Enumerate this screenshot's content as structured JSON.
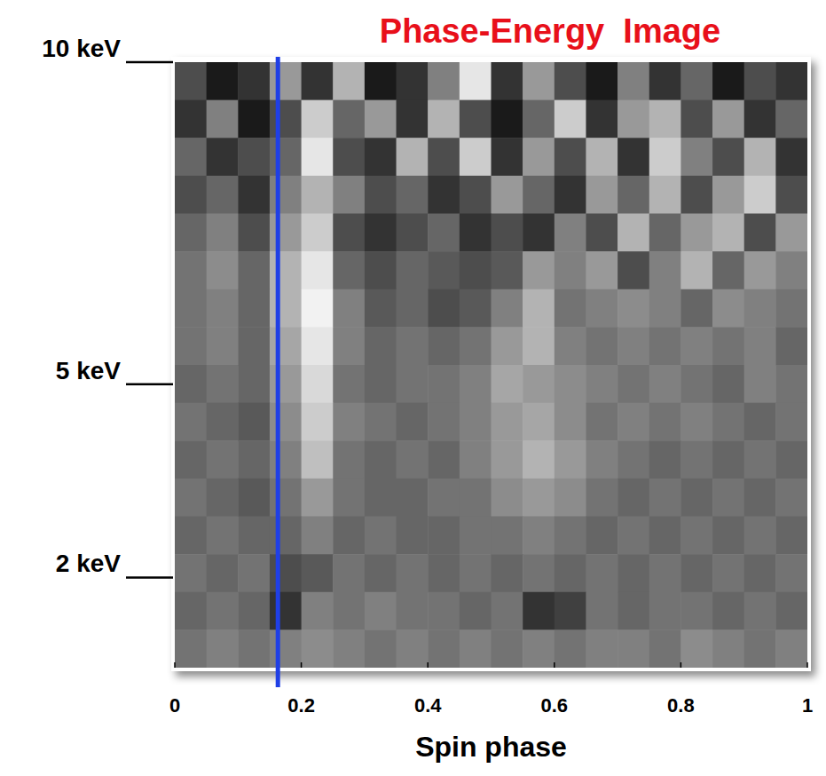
{
  "chart_data": {
    "type": "heatmap",
    "title": "Phase-Energy  Image",
    "x_label": "Spin phase",
    "xlim": [
      0,
      1
    ],
    "xticks": [
      0,
      0.2,
      0.4,
      0.6,
      0.8,
      1
    ],
    "ylim": [
      0.6,
      10
    ],
    "yticks": [
      {
        "value": 10,
        "label": "10 keV"
      },
      {
        "value": 5,
        "label": "5 keV"
      },
      {
        "value": 2,
        "label": "2 keV"
      }
    ],
    "zlim": [
      0,
      1
    ],
    "vline": {
      "x": 0.163,
      "color": "#1f3fe6"
    },
    "cells": [
      [
        0.3,
        0.1,
        0.2,
        0.6,
        0.2,
        0.7,
        0.1,
        0.2,
        0.5,
        0.9,
        0.2,
        0.6,
        0.3,
        0.1,
        0.5,
        0.2,
        0.4,
        0.1,
        0.3,
        0.2
      ],
      [
        0.2,
        0.5,
        0.1,
        0.3,
        0.8,
        0.4,
        0.6,
        0.2,
        0.7,
        0.3,
        0.1,
        0.4,
        0.8,
        0.2,
        0.6,
        0.7,
        0.3,
        0.6,
        0.2,
        0.4
      ],
      [
        0.4,
        0.2,
        0.3,
        0.4,
        0.9,
        0.3,
        0.2,
        0.7,
        0.3,
        0.8,
        0.2,
        0.6,
        0.3,
        0.7,
        0.2,
        0.8,
        0.5,
        0.3,
        0.7,
        0.2
      ],
      [
        0.3,
        0.4,
        0.2,
        0.5,
        0.7,
        0.5,
        0.3,
        0.4,
        0.2,
        0.3,
        0.6,
        0.4,
        0.2,
        0.6,
        0.4,
        0.7,
        0.3,
        0.6,
        0.8,
        0.3
      ],
      [
        0.4,
        0.5,
        0.3,
        0.6,
        0.8,
        0.3,
        0.2,
        0.3,
        0.4,
        0.2,
        0.3,
        0.2,
        0.5,
        0.3,
        0.7,
        0.4,
        0.6,
        0.7,
        0.3,
        0.6
      ],
      [
        0.45,
        0.55,
        0.4,
        0.7,
        0.9,
        0.4,
        0.3,
        0.4,
        0.35,
        0.3,
        0.35,
        0.6,
        0.5,
        0.6,
        0.3,
        0.5,
        0.7,
        0.4,
        0.6,
        0.5
      ],
      [
        0.45,
        0.5,
        0.4,
        0.7,
        0.95,
        0.5,
        0.35,
        0.4,
        0.3,
        0.35,
        0.5,
        0.7,
        0.45,
        0.5,
        0.55,
        0.5,
        0.4,
        0.55,
        0.5,
        0.45
      ],
      [
        0.45,
        0.5,
        0.4,
        0.65,
        0.9,
        0.5,
        0.4,
        0.45,
        0.4,
        0.45,
        0.6,
        0.7,
        0.5,
        0.45,
        0.5,
        0.45,
        0.5,
        0.45,
        0.5,
        0.4
      ],
      [
        0.4,
        0.45,
        0.4,
        0.6,
        0.85,
        0.45,
        0.4,
        0.45,
        0.45,
        0.5,
        0.65,
        0.6,
        0.55,
        0.5,
        0.45,
        0.5,
        0.45,
        0.4,
        0.5,
        0.45
      ],
      [
        0.45,
        0.4,
        0.35,
        0.55,
        0.8,
        0.5,
        0.45,
        0.4,
        0.45,
        0.5,
        0.6,
        0.65,
        0.55,
        0.45,
        0.5,
        0.45,
        0.5,
        0.45,
        0.4,
        0.45
      ],
      [
        0.4,
        0.45,
        0.4,
        0.5,
        0.75,
        0.45,
        0.4,
        0.45,
        0.4,
        0.5,
        0.6,
        0.7,
        0.6,
        0.5,
        0.45,
        0.4,
        0.45,
        0.4,
        0.45,
        0.4
      ],
      [
        0.45,
        0.4,
        0.35,
        0.45,
        0.6,
        0.45,
        0.4,
        0.4,
        0.45,
        0.45,
        0.55,
        0.6,
        0.55,
        0.45,
        0.4,
        0.45,
        0.4,
        0.45,
        0.4,
        0.45
      ],
      [
        0.4,
        0.45,
        0.4,
        0.4,
        0.5,
        0.4,
        0.45,
        0.4,
        0.4,
        0.45,
        0.45,
        0.5,
        0.45,
        0.4,
        0.45,
        0.4,
        0.45,
        0.4,
        0.45,
        0.4
      ],
      [
        0.45,
        0.4,
        0.45,
        0.3,
        0.35,
        0.45,
        0.4,
        0.45,
        0.4,
        0.45,
        0.4,
        0.45,
        0.4,
        0.45,
        0.4,
        0.45,
        0.4,
        0.45,
        0.4,
        0.45
      ],
      [
        0.4,
        0.45,
        0.4,
        0.2,
        0.5,
        0.45,
        0.5,
        0.45,
        0.45,
        0.4,
        0.45,
        0.2,
        0.25,
        0.45,
        0.4,
        0.45,
        0.45,
        0.4,
        0.45,
        0.4
      ],
      [
        0.45,
        0.5,
        0.45,
        0.5,
        0.55,
        0.5,
        0.45,
        0.5,
        0.45,
        0.5,
        0.45,
        0.5,
        0.45,
        0.5,
        0.5,
        0.45,
        0.55,
        0.5,
        0.45,
        0.5
      ]
    ]
  }
}
